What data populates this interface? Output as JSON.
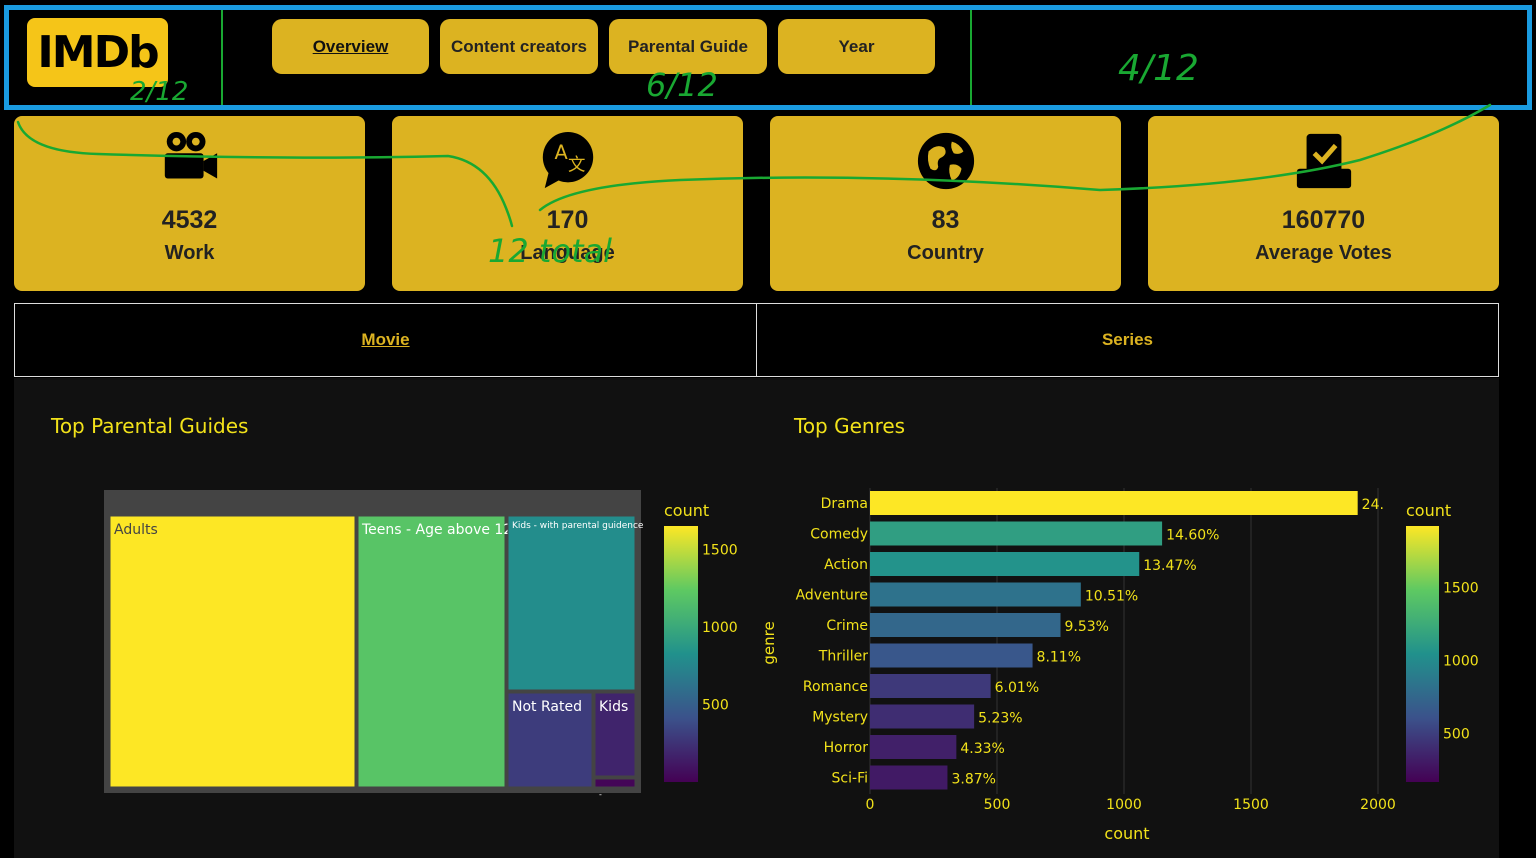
{
  "header": {
    "logo": "IMDb",
    "nav": [
      "Overview",
      "Content creators",
      "Parental Guide",
      "Year"
    ],
    "active_nav": 0
  },
  "kpis": [
    {
      "value": "4532",
      "label": "Work",
      "icon": "video-camera-icon"
    },
    {
      "value": "170",
      "label": "Language",
      "icon": "translate-icon"
    },
    {
      "value": "83",
      "label": "Country",
      "icon": "globe-icon"
    },
    {
      "value": "160770",
      "label": "Average Votes",
      "icon": "ballot-box-icon"
    }
  ],
  "tabs": [
    "Movie",
    "Series"
  ],
  "active_tab": 0,
  "annotations": [
    "2/12",
    "6/12",
    "4/12",
    "12 total"
  ],
  "colors": {
    "gold": "#dcb321",
    "frame": "#1a9be0",
    "marker": "#19a832",
    "chart_text": "#f2e21a"
  },
  "chart_data": [
    {
      "type": "treemap",
      "title": "Top Parental Guides",
      "colorbar_title": "count",
      "colorbar_ticks": [
        500,
        1000,
        1500
      ],
      "colorbar_range": [
        0,
        1650
      ],
      "items": [
        {
          "label": "Adults",
          "value": 1650
        },
        {
          "label": "Teens - Age above 12",
          "value": 1200
        },
        {
          "label": "Kids - with parental guidence",
          "value": 800
        },
        {
          "label": "Not Rated",
          "value": 300
        },
        {
          "label": "Kids",
          "value": 180
        },
        {
          "label": "-",
          "value": 20
        }
      ]
    },
    {
      "type": "bar",
      "orientation": "horizontal",
      "title": "Top Genres",
      "xlabel": "count",
      "ylabel": "genre",
      "xlim": [
        0,
        2000
      ],
      "xticks": [
        0,
        500,
        1000,
        1500,
        2000
      ],
      "colorbar_title": "count",
      "colorbar_ticks": [
        500,
        1000,
        1500
      ],
      "colorbar_range": [
        170,
        1920
      ],
      "categories": [
        "Drama",
        "Comedy",
        "Action",
        "Adventure",
        "Crime",
        "Thriller",
        "Romance",
        "Mystery",
        "Horror",
        "Sci-Fi"
      ],
      "values": [
        1920,
        1150,
        1060,
        830,
        750,
        640,
        475,
        410,
        340,
        305
      ],
      "labels": [
        "24.",
        "14.60%",
        "13.47%",
        "10.51%",
        "9.53%",
        "8.11%",
        "6.01%",
        "5.23%",
        "4.33%",
        "3.87%"
      ]
    }
  ]
}
